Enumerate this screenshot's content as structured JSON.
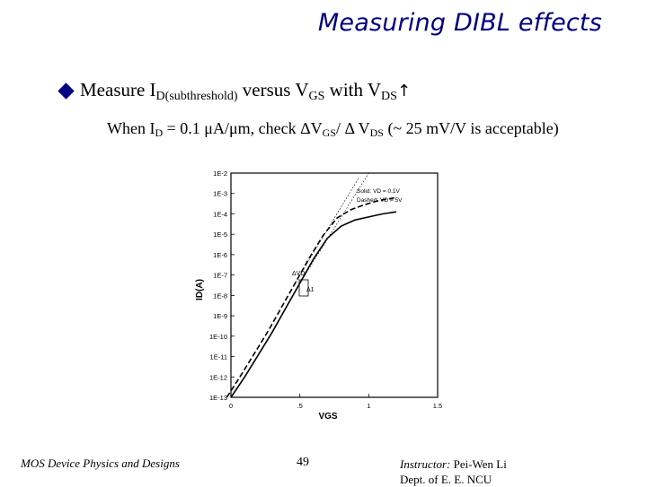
{
  "slide": {
    "title": "Measuring DIBL effects",
    "bullet": {
      "part1": "Measure I",
      "sub1": "D(subthreshold)",
      "part2": " versus V",
      "sub2": "GS",
      "part3": " with V",
      "sub3": "DS",
      "arrow": "↑"
    },
    "when": {
      "part1": "When I",
      "sub1": "D",
      "part2": " = 0.1 μA/μm, check ΔV",
      "sub2": "GS",
      "part3": "/ Δ V",
      "sub3": "DS",
      "part4": "  (~ 25 mV/V is acceptable)"
    }
  },
  "chart_data": {
    "type": "line",
    "xlabel": "VGS",
    "ylabel": "ID(A)",
    "xticks": [
      "0",
      ".5",
      "1",
      "1.5"
    ],
    "yticks": [
      "1E-2",
      "1E-3",
      "1E-4",
      "1E-5",
      "1E-6",
      "1E-7",
      "1E-8",
      "1E-9",
      "1E-10",
      "1E-11",
      "1E-12",
      "1E-13"
    ],
    "xlim": [
      0,
      1.5
    ],
    "ylim_log10": [
      -13,
      -2
    ],
    "legend": {
      "solid": "Solid: VD = 0.1V",
      "dashed": "Dashed: VD = 5V",
      "placement": "top-right"
    },
    "annotations": {
      "dvd": "ΔVD",
      "delta": "Δ1"
    },
    "series": [
      {
        "style": "solid",
        "x": [
          0.0,
          0.1,
          0.2,
          0.3,
          0.4,
          0.5,
          0.6,
          0.7,
          0.8,
          0.9,
          1.0,
          1.1,
          1.2
        ],
        "log10_y": [
          -13.0,
          -12.0,
          -10.9,
          -9.8,
          -8.6,
          -7.4,
          -6.2,
          -5.2,
          -4.6,
          -4.3,
          -4.15,
          -4.0,
          -3.9
        ]
      },
      {
        "style": "dashed",
        "x": [
          -0.03,
          0.07,
          0.17,
          0.27,
          0.37,
          0.47,
          0.57,
          0.67,
          0.77,
          0.87,
          0.97,
          1.07,
          1.2
        ],
        "log10_y": [
          -13.0,
          -11.95,
          -10.85,
          -9.75,
          -8.55,
          -7.35,
          -6.15,
          -5.05,
          -4.2,
          -3.8,
          -3.55,
          -3.35,
          -3.2
        ]
      }
    ]
  },
  "footer": {
    "left": "MOS Device Physics and Designs",
    "page": "49",
    "instructor_label": "Instructor:",
    "instructor_name": " Pei-Wen Li",
    "dept": "Dept. of E. E. NCU"
  }
}
